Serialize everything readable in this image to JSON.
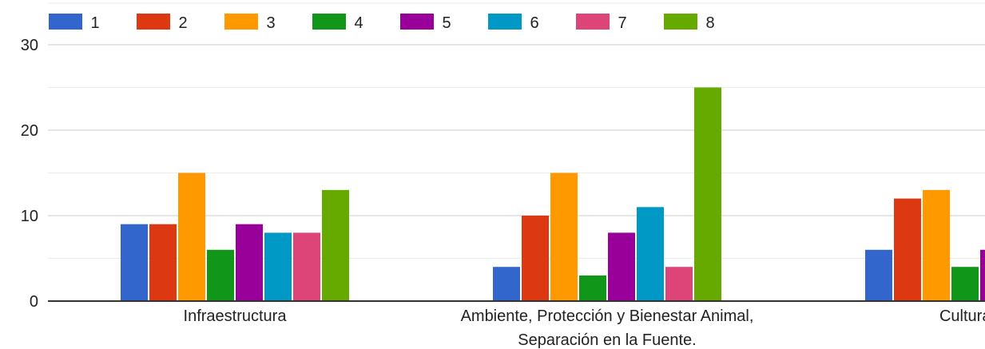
{
  "chart_data": {
    "type": "bar",
    "title": "",
    "xlabel": "",
    "ylabel": "",
    "ylim": [
      0,
      30
    ],
    "yticks": [
      0,
      10,
      20,
      30
    ],
    "grid": true,
    "legend_position": "top-left",
    "categories": [
      [
        "Infraestructura"
      ],
      [
        "Ambiente, Protección y Bienestar Animal,",
        "Separación en la Fuente."
      ],
      [
        "Cultura y D"
      ]
    ],
    "series": [
      {
        "name": "1",
        "color": "#3366cc",
        "values": [
          9,
          4,
          6
        ]
      },
      {
        "name": "2",
        "color": "#dc3912",
        "values": [
          9,
          10,
          12
        ]
      },
      {
        "name": "3",
        "color": "#ff9900",
        "values": [
          15,
          15,
          13
        ]
      },
      {
        "name": "4",
        "color": "#109618",
        "values": [
          6,
          3,
          4
        ]
      },
      {
        "name": "5",
        "color": "#990099",
        "values": [
          9,
          8,
          6
        ]
      },
      {
        "name": "6",
        "color": "#0099c6",
        "values": [
          8,
          11,
          null
        ]
      },
      {
        "name": "7",
        "color": "#dd4477",
        "values": [
          8,
          4,
          null
        ]
      },
      {
        "name": "8",
        "color": "#66aa00",
        "values": [
          13,
          25,
          null
        ]
      }
    ]
  }
}
